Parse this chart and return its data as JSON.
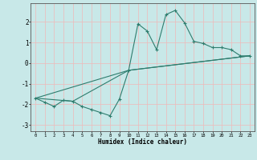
{
  "xlabel": "Humidex (Indice chaleur)",
  "ylabel": "",
  "background_color": "#c8e8e8",
  "grid_color": "#f0b8b8",
  "line_color": "#2e7d6e",
  "xlim": [
    -0.5,
    23.5
  ],
  "ylim": [
    -3.3,
    2.9
  ],
  "xticks": [
    0,
    1,
    2,
    3,
    4,
    5,
    6,
    7,
    8,
    9,
    10,
    11,
    12,
    13,
    14,
    15,
    16,
    17,
    18,
    19,
    20,
    21,
    22,
    23
  ],
  "yticks": [
    -3,
    -2,
    -1,
    0,
    1,
    2
  ],
  "curve1_x": [
    0,
    1,
    2,
    3,
    4,
    5,
    6,
    7,
    8,
    9,
    10,
    11,
    12,
    13,
    14,
    15,
    16,
    17,
    18,
    19,
    20,
    21,
    22,
    23
  ],
  "curve1_y": [
    -1.7,
    -1.9,
    -2.1,
    -1.8,
    -1.85,
    -2.1,
    -2.25,
    -2.4,
    -2.55,
    -1.75,
    -0.35,
    1.9,
    1.55,
    0.65,
    2.35,
    2.55,
    1.95,
    1.05,
    0.95,
    0.75,
    0.75,
    0.65,
    0.35,
    0.35
  ],
  "curve2_x": [
    0,
    4,
    10,
    23
  ],
  "curve2_y": [
    -1.7,
    -1.85,
    -0.35,
    0.35
  ],
  "curve3_x": [
    0,
    10,
    23
  ],
  "curve3_y": [
    -1.7,
    -0.35,
    0.35
  ]
}
